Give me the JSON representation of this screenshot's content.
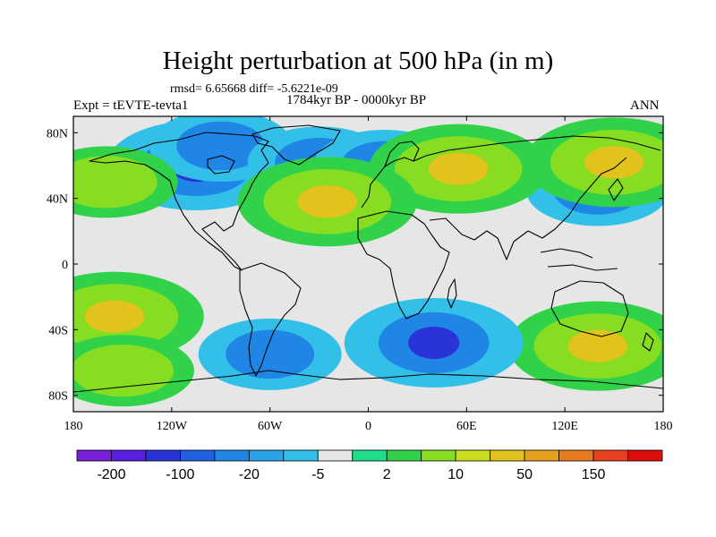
{
  "chart_data": {
    "type": "heatmap",
    "title": "Height perturbation at 500 hPa (in m)",
    "stats": "rmsd= 6.65668 diff= -5.6221e-09",
    "period": "1784kyr BP - 0000kyr BP",
    "experiment": "Expt = tEVTE-tevta1",
    "season": "ANN",
    "xlim": [
      -180,
      180
    ],
    "ylim": [
      -90,
      90
    ],
    "x_ticks": [
      {
        "value": -180,
        "label": "180"
      },
      {
        "value": -120,
        "label": "120W"
      },
      {
        "value": -60,
        "label": "60W"
      },
      {
        "value": 0,
        "label": "0"
      },
      {
        "value": 60,
        "label": "60E"
      },
      {
        "value": 120,
        "label": "120E"
      },
      {
        "value": 180,
        "label": "180"
      }
    ],
    "y_ticks": [
      {
        "value": 80,
        "label": "80N"
      },
      {
        "value": 40,
        "label": "40N"
      },
      {
        "value": 0,
        "label": "0"
      },
      {
        "value": -40,
        "label": "40S"
      },
      {
        "value": -80,
        "label": "80S"
      }
    ],
    "colorbar": {
      "colors": [
        "#7a1fd9",
        "#5a1ee0",
        "#2a34d6",
        "#1f5fe0",
        "#1f86e6",
        "#2aa3e8",
        "#33c0e8",
        "#e6e6e6",
        "#20dd8a",
        "#31d24a",
        "#86dd22",
        "#c9dc20",
        "#e2c21c",
        "#e6a11d",
        "#e87a1e",
        "#e6401e",
        "#dd0d0d"
      ],
      "labels": [
        "-200",
        "-100",
        "-20",
        "-5",
        "2",
        "10",
        "50",
        "150"
      ]
    },
    "field": [
      {
        "lon": -105,
        "lat": 60,
        "value": -100
      },
      {
        "lon": -90,
        "lat": 72,
        "value": -20
      },
      {
        "lon": -30,
        "lat": 62,
        "value": -20
      },
      {
        "lon": 10,
        "lat": 60,
        "value": -20
      },
      {
        "lon": 140,
        "lat": 45,
        "value": -20
      },
      {
        "lon": 55,
        "lat": 58,
        "value": 50
      },
      {
        "lon": 150,
        "lat": 62,
        "value": 50
      },
      {
        "lon": -25,
        "lat": 38,
        "value": 50
      },
      {
        "lon": -155,
        "lat": -32,
        "value": 50
      },
      {
        "lon": 140,
        "lat": -50,
        "value": 50
      },
      {
        "lon": 40,
        "lat": -48,
        "value": -100
      },
      {
        "lon": -60,
        "lat": -55,
        "value": -20
      },
      {
        "lon": -160,
        "lat": 50,
        "value": 10
      },
      {
        "lon": -150,
        "lat": -65,
        "value": 10
      },
      {
        "lon": 0,
        "lat": 0,
        "value": 2
      }
    ]
  }
}
